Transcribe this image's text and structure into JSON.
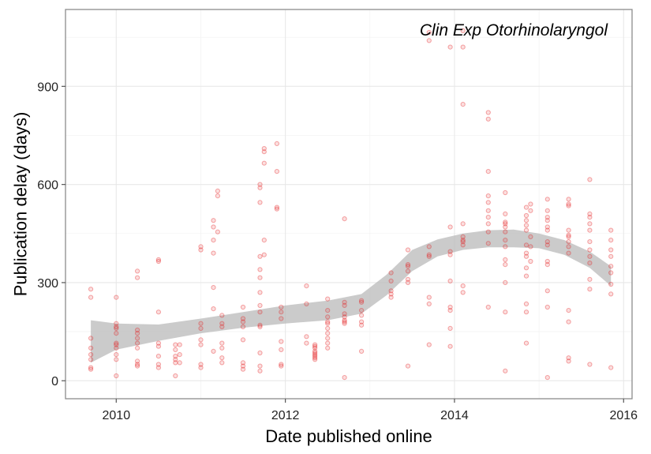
{
  "chart_data": {
    "type": "scatter",
    "annotation": "Clin Exp Otorhinolaryngol",
    "xlabel": "Date published online",
    "ylabel": "Publication delay (days)",
    "xlim": [
      2009.4,
      2016.1
    ],
    "ylim": [
      -55,
      1135
    ],
    "x_ticks": [
      2010,
      2012,
      2014,
      2016
    ],
    "x_tick_labels": [
      "2010",
      "2012",
      "2014",
      "2016"
    ],
    "y_ticks": [
      0,
      300,
      600,
      900
    ],
    "y_tick_labels": [
      "0",
      "300",
      "600",
      "900"
    ],
    "grid": true,
    "colors": {
      "points": "#e41a1c",
      "band": "#bdbdbd",
      "panel_border": "#8c8c8c"
    },
    "points": [
      [
        2009.7,
        280
      ],
      [
        2009.7,
        255
      ],
      [
        2009.7,
        130
      ],
      [
        2009.7,
        100
      ],
      [
        2009.7,
        80
      ],
      [
        2009.7,
        65
      ],
      [
        2009.7,
        40
      ],
      [
        2009.7,
        35
      ],
      [
        2010.0,
        255
      ],
      [
        2010.0,
        175
      ],
      [
        2010.0,
        165
      ],
      [
        2010.0,
        160
      ],
      [
        2010.0,
        145
      ],
      [
        2010.0,
        115
      ],
      [
        2010.0,
        110
      ],
      [
        2010.0,
        100
      ],
      [
        2010.0,
        80
      ],
      [
        2010.0,
        65
      ],
      [
        2010.0,
        15
      ],
      [
        2010.25,
        335
      ],
      [
        2010.25,
        315
      ],
      [
        2010.25,
        155
      ],
      [
        2010.25,
        145
      ],
      [
        2010.25,
        130
      ],
      [
        2010.25,
        115
      ],
      [
        2010.25,
        100
      ],
      [
        2010.25,
        60
      ],
      [
        2010.25,
        50
      ],
      [
        2010.25,
        45
      ],
      [
        2010.5,
        370
      ],
      [
        2010.5,
        365
      ],
      [
        2010.5,
        210
      ],
      [
        2010.5,
        115
      ],
      [
        2010.5,
        105
      ],
      [
        2010.5,
        75
      ],
      [
        2010.5,
        50
      ],
      [
        2010.5,
        40
      ],
      [
        2010.7,
        110
      ],
      [
        2010.7,
        95
      ],
      [
        2010.7,
        75
      ],
      [
        2010.7,
        65
      ],
      [
        2010.7,
        55
      ],
      [
        2010.7,
        15
      ],
      [
        2010.75,
        110
      ],
      [
        2010.75,
        80
      ],
      [
        2010.75,
        55
      ],
      [
        2011.0,
        410
      ],
      [
        2011.0,
        400
      ],
      [
        2011.0,
        175
      ],
      [
        2011.0,
        160
      ],
      [
        2011.0,
        125
      ],
      [
        2011.0,
        110
      ],
      [
        2011.0,
        50
      ],
      [
        2011.0,
        40
      ],
      [
        2011.15,
        490
      ],
      [
        2011.15,
        470
      ],
      [
        2011.15,
        430
      ],
      [
        2011.15,
        390
      ],
      [
        2011.15,
        285
      ],
      [
        2011.15,
        220
      ],
      [
        2011.15,
        90
      ],
      [
        2011.2,
        580
      ],
      [
        2011.2,
        565
      ],
      [
        2011.2,
        455
      ],
      [
        2011.25,
        200
      ],
      [
        2011.25,
        175
      ],
      [
        2011.25,
        165
      ],
      [
        2011.25,
        115
      ],
      [
        2011.25,
        100
      ],
      [
        2011.25,
        70
      ],
      [
        2011.25,
        55
      ],
      [
        2011.5,
        225
      ],
      [
        2011.5,
        190
      ],
      [
        2011.5,
        180
      ],
      [
        2011.5,
        165
      ],
      [
        2011.5,
        125
      ],
      [
        2011.5,
        55
      ],
      [
        2011.5,
        45
      ],
      [
        2011.5,
        35
      ],
      [
        2011.7,
        600
      ],
      [
        2011.7,
        590
      ],
      [
        2011.7,
        545
      ],
      [
        2011.7,
        380
      ],
      [
        2011.7,
        340
      ],
      [
        2011.7,
        315
      ],
      [
        2011.7,
        270
      ],
      [
        2011.7,
        230
      ],
      [
        2011.7,
        210
      ],
      [
        2011.7,
        170
      ],
      [
        2011.7,
        165
      ],
      [
        2011.7,
        85
      ],
      [
        2011.7,
        45
      ],
      [
        2011.7,
        30
      ],
      [
        2011.75,
        710
      ],
      [
        2011.75,
        700
      ],
      [
        2011.75,
        665
      ],
      [
        2011.75,
        430
      ],
      [
        2011.75,
        385
      ],
      [
        2011.9,
        725
      ],
      [
        2011.9,
        640
      ],
      [
        2011.9,
        530
      ],
      [
        2011.9,
        525
      ],
      [
        2011.95,
        225
      ],
      [
        2011.95,
        210
      ],
      [
        2011.95,
        190
      ],
      [
        2011.95,
        120
      ],
      [
        2011.95,
        95
      ],
      [
        2011.95,
        50
      ],
      [
        2011.95,
        45
      ],
      [
        2012.25,
        290
      ],
      [
        2012.25,
        235
      ],
      [
        2012.25,
        135
      ],
      [
        2012.25,
        115
      ],
      [
        2012.35,
        110
      ],
      [
        2012.35,
        105
      ],
      [
        2012.35,
        100
      ],
      [
        2012.35,
        90
      ],
      [
        2012.35,
        85
      ],
      [
        2012.35,
        80
      ],
      [
        2012.35,
        75
      ],
      [
        2012.35,
        70
      ],
      [
        2012.35,
        65
      ],
      [
        2012.5,
        250
      ],
      [
        2012.5,
        215
      ],
      [
        2012.5,
        195
      ],
      [
        2012.5,
        180
      ],
      [
        2012.5,
        175
      ],
      [
        2012.5,
        160
      ],
      [
        2012.5,
        145
      ],
      [
        2012.5,
        130
      ],
      [
        2012.5,
        115
      ],
      [
        2012.5,
        100
      ],
      [
        2012.7,
        495
      ],
      [
        2012.7,
        240
      ],
      [
        2012.7,
        230
      ],
      [
        2012.7,
        205
      ],
      [
        2012.7,
        195
      ],
      [
        2012.7,
        185
      ],
      [
        2012.7,
        180
      ],
      [
        2012.7,
        175
      ],
      [
        2012.7,
        10
      ],
      [
        2012.9,
        245
      ],
      [
        2012.9,
        240
      ],
      [
        2012.9,
        215
      ],
      [
        2012.9,
        200
      ],
      [
        2012.9,
        180
      ],
      [
        2012.9,
        170
      ],
      [
        2012.9,
        90
      ],
      [
        2013.25,
        330
      ],
      [
        2013.25,
        305
      ],
      [
        2013.25,
        275
      ],
      [
        2013.25,
        265
      ],
      [
        2013.25,
        255
      ],
      [
        2013.45,
        400
      ],
      [
        2013.45,
        355
      ],
      [
        2013.45,
        350
      ],
      [
        2013.45,
        335
      ],
      [
        2013.45,
        310
      ],
      [
        2013.45,
        300
      ],
      [
        2013.45,
        45
      ],
      [
        2013.7,
        1065
      ],
      [
        2013.7,
        1040
      ],
      [
        2013.7,
        410
      ],
      [
        2013.7,
        385
      ],
      [
        2013.7,
        380
      ],
      [
        2013.7,
        255
      ],
      [
        2013.7,
        235
      ],
      [
        2013.7,
        110
      ],
      [
        2013.95,
        1020
      ],
      [
        2013.95,
        470
      ],
      [
        2013.95,
        395
      ],
      [
        2013.95,
        385
      ],
      [
        2013.95,
        305
      ],
      [
        2013.95,
        225
      ],
      [
        2013.95,
        215
      ],
      [
        2013.95,
        160
      ],
      [
        2013.95,
        105
      ],
      [
        2014.1,
        1070
      ],
      [
        2014.1,
        1020
      ],
      [
        2014.1,
        845
      ],
      [
        2014.1,
        480
      ],
      [
        2014.1,
        440
      ],
      [
        2014.1,
        430
      ],
      [
        2014.1,
        425
      ],
      [
        2014.1,
        415
      ],
      [
        2014.1,
        290
      ],
      [
        2014.1,
        270
      ],
      [
        2014.4,
        820
      ],
      [
        2014.4,
        800
      ],
      [
        2014.4,
        640
      ],
      [
        2014.4,
        565
      ],
      [
        2014.4,
        545
      ],
      [
        2014.4,
        520
      ],
      [
        2014.4,
        500
      ],
      [
        2014.4,
        480
      ],
      [
        2014.4,
        455
      ],
      [
        2014.4,
        420
      ],
      [
        2014.4,
        225
      ],
      [
        2014.6,
        575
      ],
      [
        2014.6,
        510
      ],
      [
        2014.6,
        485
      ],
      [
        2014.6,
        480
      ],
      [
        2014.6,
        470
      ],
      [
        2014.6,
        455
      ],
      [
        2014.6,
        430
      ],
      [
        2014.6,
        410
      ],
      [
        2014.6,
        370
      ],
      [
        2014.6,
        355
      ],
      [
        2014.6,
        300
      ],
      [
        2014.6,
        210
      ],
      [
        2014.6,
        30
      ],
      [
        2014.85,
        530
      ],
      [
        2014.85,
        505
      ],
      [
        2014.85,
        490
      ],
      [
        2014.85,
        475
      ],
      [
        2014.85,
        460
      ],
      [
        2014.85,
        415
      ],
      [
        2014.85,
        390
      ],
      [
        2014.85,
        380
      ],
      [
        2014.85,
        345
      ],
      [
        2014.85,
        320
      ],
      [
        2014.85,
        235
      ],
      [
        2014.85,
        210
      ],
      [
        2014.85,
        115
      ],
      [
        2014.9,
        540
      ],
      [
        2014.9,
        520
      ],
      [
        2014.9,
        440
      ],
      [
        2014.9,
        410
      ],
      [
        2014.9,
        365
      ],
      [
        2015.1,
        555
      ],
      [
        2015.1,
        520
      ],
      [
        2015.1,
        500
      ],
      [
        2015.1,
        490
      ],
      [
        2015.1,
        470
      ],
      [
        2015.1,
        460
      ],
      [
        2015.1,
        425
      ],
      [
        2015.1,
        415
      ],
      [
        2015.1,
        365
      ],
      [
        2015.1,
        355
      ],
      [
        2015.1,
        275
      ],
      [
        2015.1,
        225
      ],
      [
        2015.1,
        10
      ],
      [
        2015.35,
        555
      ],
      [
        2015.35,
        540
      ],
      [
        2015.35,
        535
      ],
      [
        2015.35,
        460
      ],
      [
        2015.35,
        445
      ],
      [
        2015.35,
        440
      ],
      [
        2015.35,
        425
      ],
      [
        2015.35,
        410
      ],
      [
        2015.35,
        390
      ],
      [
        2015.35,
        215
      ],
      [
        2015.35,
        180
      ],
      [
        2015.35,
        70
      ],
      [
        2015.35,
        60
      ],
      [
        2015.6,
        615
      ],
      [
        2015.6,
        510
      ],
      [
        2015.6,
        500
      ],
      [
        2015.6,
        480
      ],
      [
        2015.6,
        460
      ],
      [
        2015.6,
        425
      ],
      [
        2015.6,
        400
      ],
      [
        2015.6,
        380
      ],
      [
        2015.6,
        360
      ],
      [
        2015.6,
        310
      ],
      [
        2015.6,
        280
      ],
      [
        2015.6,
        50
      ],
      [
        2015.85,
        460
      ],
      [
        2015.85,
        430
      ],
      [
        2015.85,
        400
      ],
      [
        2015.85,
        380
      ],
      [
        2015.85,
        350
      ],
      [
        2015.85,
        330
      ],
      [
        2015.85,
        295
      ],
      [
        2015.85,
        265
      ],
      [
        2015.85,
        40
      ]
    ],
    "smooth_band": {
      "x": [
        2009.7,
        2010.0,
        2010.5,
        2011.0,
        2011.5,
        2012.0,
        2012.5,
        2012.9,
        2013.2,
        2013.5,
        2013.8,
        2014.1,
        2014.4,
        2014.7,
        2015.0,
        2015.3,
        2015.6,
        2015.85
      ],
      "upper": [
        185,
        175,
        172,
        190,
        210,
        230,
        245,
        265,
        325,
        400,
        432,
        450,
        460,
        462,
        450,
        430,
        395,
        350
      ],
      "lower": [
        55,
        95,
        122,
        145,
        162,
        175,
        185,
        205,
        262,
        335,
        380,
        400,
        408,
        408,
        405,
        385,
        345,
        290
      ]
    }
  }
}
